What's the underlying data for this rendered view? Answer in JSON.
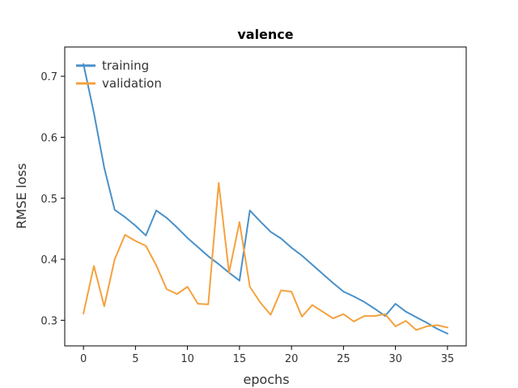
{
  "chart_data": {
    "type": "line",
    "title": "valence",
    "xlabel": "epochs",
    "ylabel": "RMSE loss",
    "xlim": [
      -1.8,
      36.8
    ],
    "ylim": [
      0.258,
      0.748
    ],
    "xticks": [
      0,
      5,
      10,
      15,
      20,
      25,
      30,
      35
    ],
    "yticks": [
      0.3,
      0.4,
      0.5,
      0.6,
      0.7
    ],
    "ytick_labels": [
      "0.3",
      "0.4",
      "0.5",
      "0.6",
      "0.7"
    ],
    "grid": false,
    "legend_position": "top-left",
    "series": [
      {
        "name": "training",
        "color": "#4a90c8",
        "x": [
          0,
          1,
          2,
          3,
          4,
          5,
          6,
          7,
          8,
          9,
          10,
          11,
          12,
          13,
          14,
          15,
          16,
          17,
          18,
          19,
          20,
          21,
          22,
          23,
          24,
          25,
          26,
          27,
          28,
          29,
          30,
          31,
          32,
          33,
          34,
          35
        ],
        "values": [
          0.72,
          0.64,
          0.55,
          0.481,
          0.469,
          0.455,
          0.439,
          0.48,
          0.468,
          0.452,
          0.435,
          0.42,
          0.405,
          0.392,
          0.378,
          0.365,
          0.48,
          0.462,
          0.445,
          0.434,
          0.419,
          0.406,
          0.391,
          0.376,
          0.361,
          0.347,
          0.339,
          0.33,
          0.319,
          0.307,
          0.327,
          0.314,
          0.305,
          0.296,
          0.286,
          0.278
        ]
      },
      {
        "name": "validation",
        "color": "#f5a13e",
        "x": [
          0,
          1,
          2,
          3,
          4,
          5,
          6,
          7,
          8,
          9,
          10,
          11,
          12,
          13,
          14,
          15,
          16,
          17,
          18,
          19,
          20,
          21,
          22,
          23,
          24,
          25,
          26,
          27,
          28,
          29,
          30,
          31,
          32,
          33,
          34,
          35
        ],
        "values": [
          0.311,
          0.389,
          0.323,
          0.4,
          0.44,
          0.43,
          0.422,
          0.39,
          0.351,
          0.343,
          0.355,
          0.327,
          0.326,
          0.525,
          0.378,
          0.461,
          0.355,
          0.329,
          0.309,
          0.349,
          0.347,
          0.306,
          0.325,
          0.314,
          0.303,
          0.31,
          0.298,
          0.307,
          0.307,
          0.31,
          0.29,
          0.299,
          0.284,
          0.29,
          0.292,
          0.288
        ]
      }
    ]
  }
}
